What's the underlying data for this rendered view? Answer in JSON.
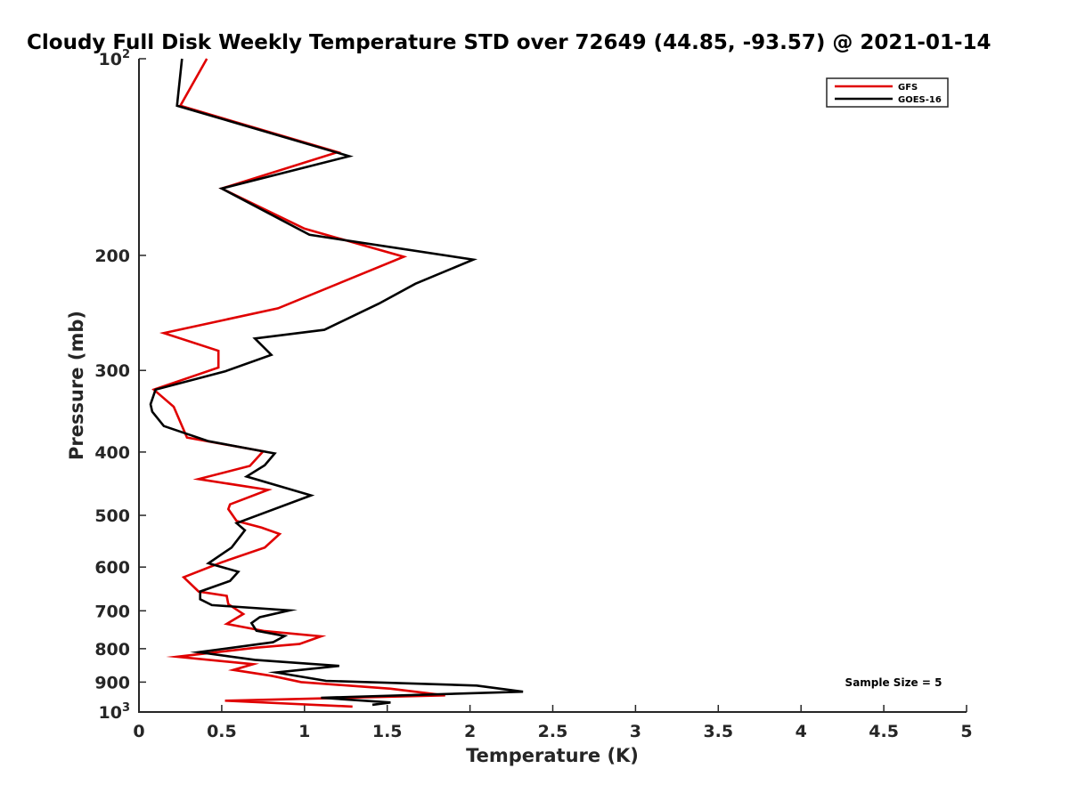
{
  "chart_data": {
    "type": "line",
    "title": "Cloudy Full Disk Weekly Temperature STD over 72649 (44.85, -93.57) @ 2021-01-14",
    "xlabel": "Temperature (K)",
    "ylabel": "Pressure (mb)",
    "xlim": [
      0,
      5
    ],
    "ylim": [
      1000,
      100
    ],
    "y_scale": "log",
    "y_reversed": true,
    "grid": false,
    "legend_position": "top-right",
    "x_ticks": [
      "0",
      "0.5",
      "1",
      "1.5",
      "2",
      "2.5",
      "3",
      "3.5",
      "4",
      "4.5",
      "5"
    ],
    "y_ticks": [
      {
        "value": 100,
        "label": "10",
        "sup": "2"
      },
      {
        "value": 200,
        "label": "200",
        "sup": ""
      },
      {
        "value": 300,
        "label": "300",
        "sup": ""
      },
      {
        "value": 400,
        "label": "400",
        "sup": ""
      },
      {
        "value": 500,
        "label": "500",
        "sup": ""
      },
      {
        "value": 600,
        "label": "600",
        "sup": ""
      },
      {
        "value": 700,
        "label": "700",
        "sup": ""
      },
      {
        "value": 800,
        "label": "800",
        "sup": ""
      },
      {
        "value": 900,
        "label": "900",
        "sup": ""
      },
      {
        "value": 1000,
        "label": "10",
        "sup": "3"
      }
    ],
    "annotation": "Sample Size = 5",
    "series": [
      {
        "name": "GFS",
        "color": "#e00000",
        "points": [
          [
            0.41,
            100
          ],
          [
            0.25,
            118
          ],
          [
            1.2,
            139
          ],
          [
            0.5,
            158
          ],
          [
            1.0,
            182
          ],
          [
            1.6,
            201
          ],
          [
            0.84,
            241
          ],
          [
            0.15,
            263
          ],
          [
            0.48,
            280
          ],
          [
            0.48,
            297
          ],
          [
            0.09,
            321
          ],
          [
            0.21,
            341
          ],
          [
            0.29,
            380
          ],
          [
            0.75,
            399
          ],
          [
            0.67,
            420
          ],
          [
            0.36,
            440
          ],
          [
            0.78,
            457
          ],
          [
            0.55,
            481
          ],
          [
            0.54,
            489
          ],
          [
            0.59,
            510
          ],
          [
            0.74,
            522
          ],
          [
            0.85,
            534
          ],
          [
            0.76,
            560
          ],
          [
            0.5,
            590
          ],
          [
            0.27,
            622
          ],
          [
            0.36,
            654
          ],
          [
            0.53,
            664
          ],
          [
            0.54,
            684
          ],
          [
            0.63,
            708
          ],
          [
            0.53,
            733
          ],
          [
            0.76,
            752
          ],
          [
            1.1,
            766
          ],
          [
            0.97,
            787
          ],
          [
            0.71,
            797
          ],
          [
            0.23,
            823
          ],
          [
            0.69,
            845
          ],
          [
            0.57,
            862
          ],
          [
            0.8,
            880
          ],
          [
            0.98,
            900
          ],
          [
            1.52,
            921
          ],
          [
            1.85,
            943
          ],
          [
            0.52,
            961
          ],
          [
            1.29,
            981
          ]
        ]
      },
      {
        "name": "GOES-16",
        "color": "#000000",
        "points": [
          [
            0.26,
            100
          ],
          [
            0.23,
            118
          ],
          [
            1.27,
            141
          ],
          [
            0.5,
            158
          ],
          [
            1.03,
            186
          ],
          [
            2.02,
            203
          ],
          [
            1.67,
            221
          ],
          [
            1.45,
            237
          ],
          [
            1.12,
            260
          ],
          [
            0.7,
            268
          ],
          [
            0.8,
            284
          ],
          [
            0.52,
            301
          ],
          [
            0.1,
            321
          ],
          [
            0.07,
            338
          ],
          [
            0.08,
            347
          ],
          [
            0.15,
            365
          ],
          [
            0.42,
            385
          ],
          [
            0.82,
            402
          ],
          [
            0.76,
            419
          ],
          [
            0.65,
            436
          ],
          [
            1.04,
            466
          ],
          [
            0.59,
            514
          ],
          [
            0.64,
            527
          ],
          [
            0.56,
            560
          ],
          [
            0.42,
            592
          ],
          [
            0.6,
            610
          ],
          [
            0.55,
            630
          ],
          [
            0.37,
            654
          ],
          [
            0.37,
            672
          ],
          [
            0.44,
            686
          ],
          [
            0.91,
            699
          ],
          [
            0.73,
            716
          ],
          [
            0.68,
            731
          ],
          [
            0.71,
            751
          ],
          [
            0.88,
            765
          ],
          [
            0.81,
            782
          ],
          [
            0.36,
            810
          ],
          [
            0.7,
            832
          ],
          [
            1.21,
            850
          ],
          [
            0.83,
            870
          ],
          [
            1.13,
            896
          ],
          [
            2.04,
            911
          ],
          [
            2.32,
            931
          ],
          [
            1.1,
            951
          ],
          [
            1.52,
            967
          ],
          [
            1.41,
            975
          ]
        ]
      }
    ]
  }
}
